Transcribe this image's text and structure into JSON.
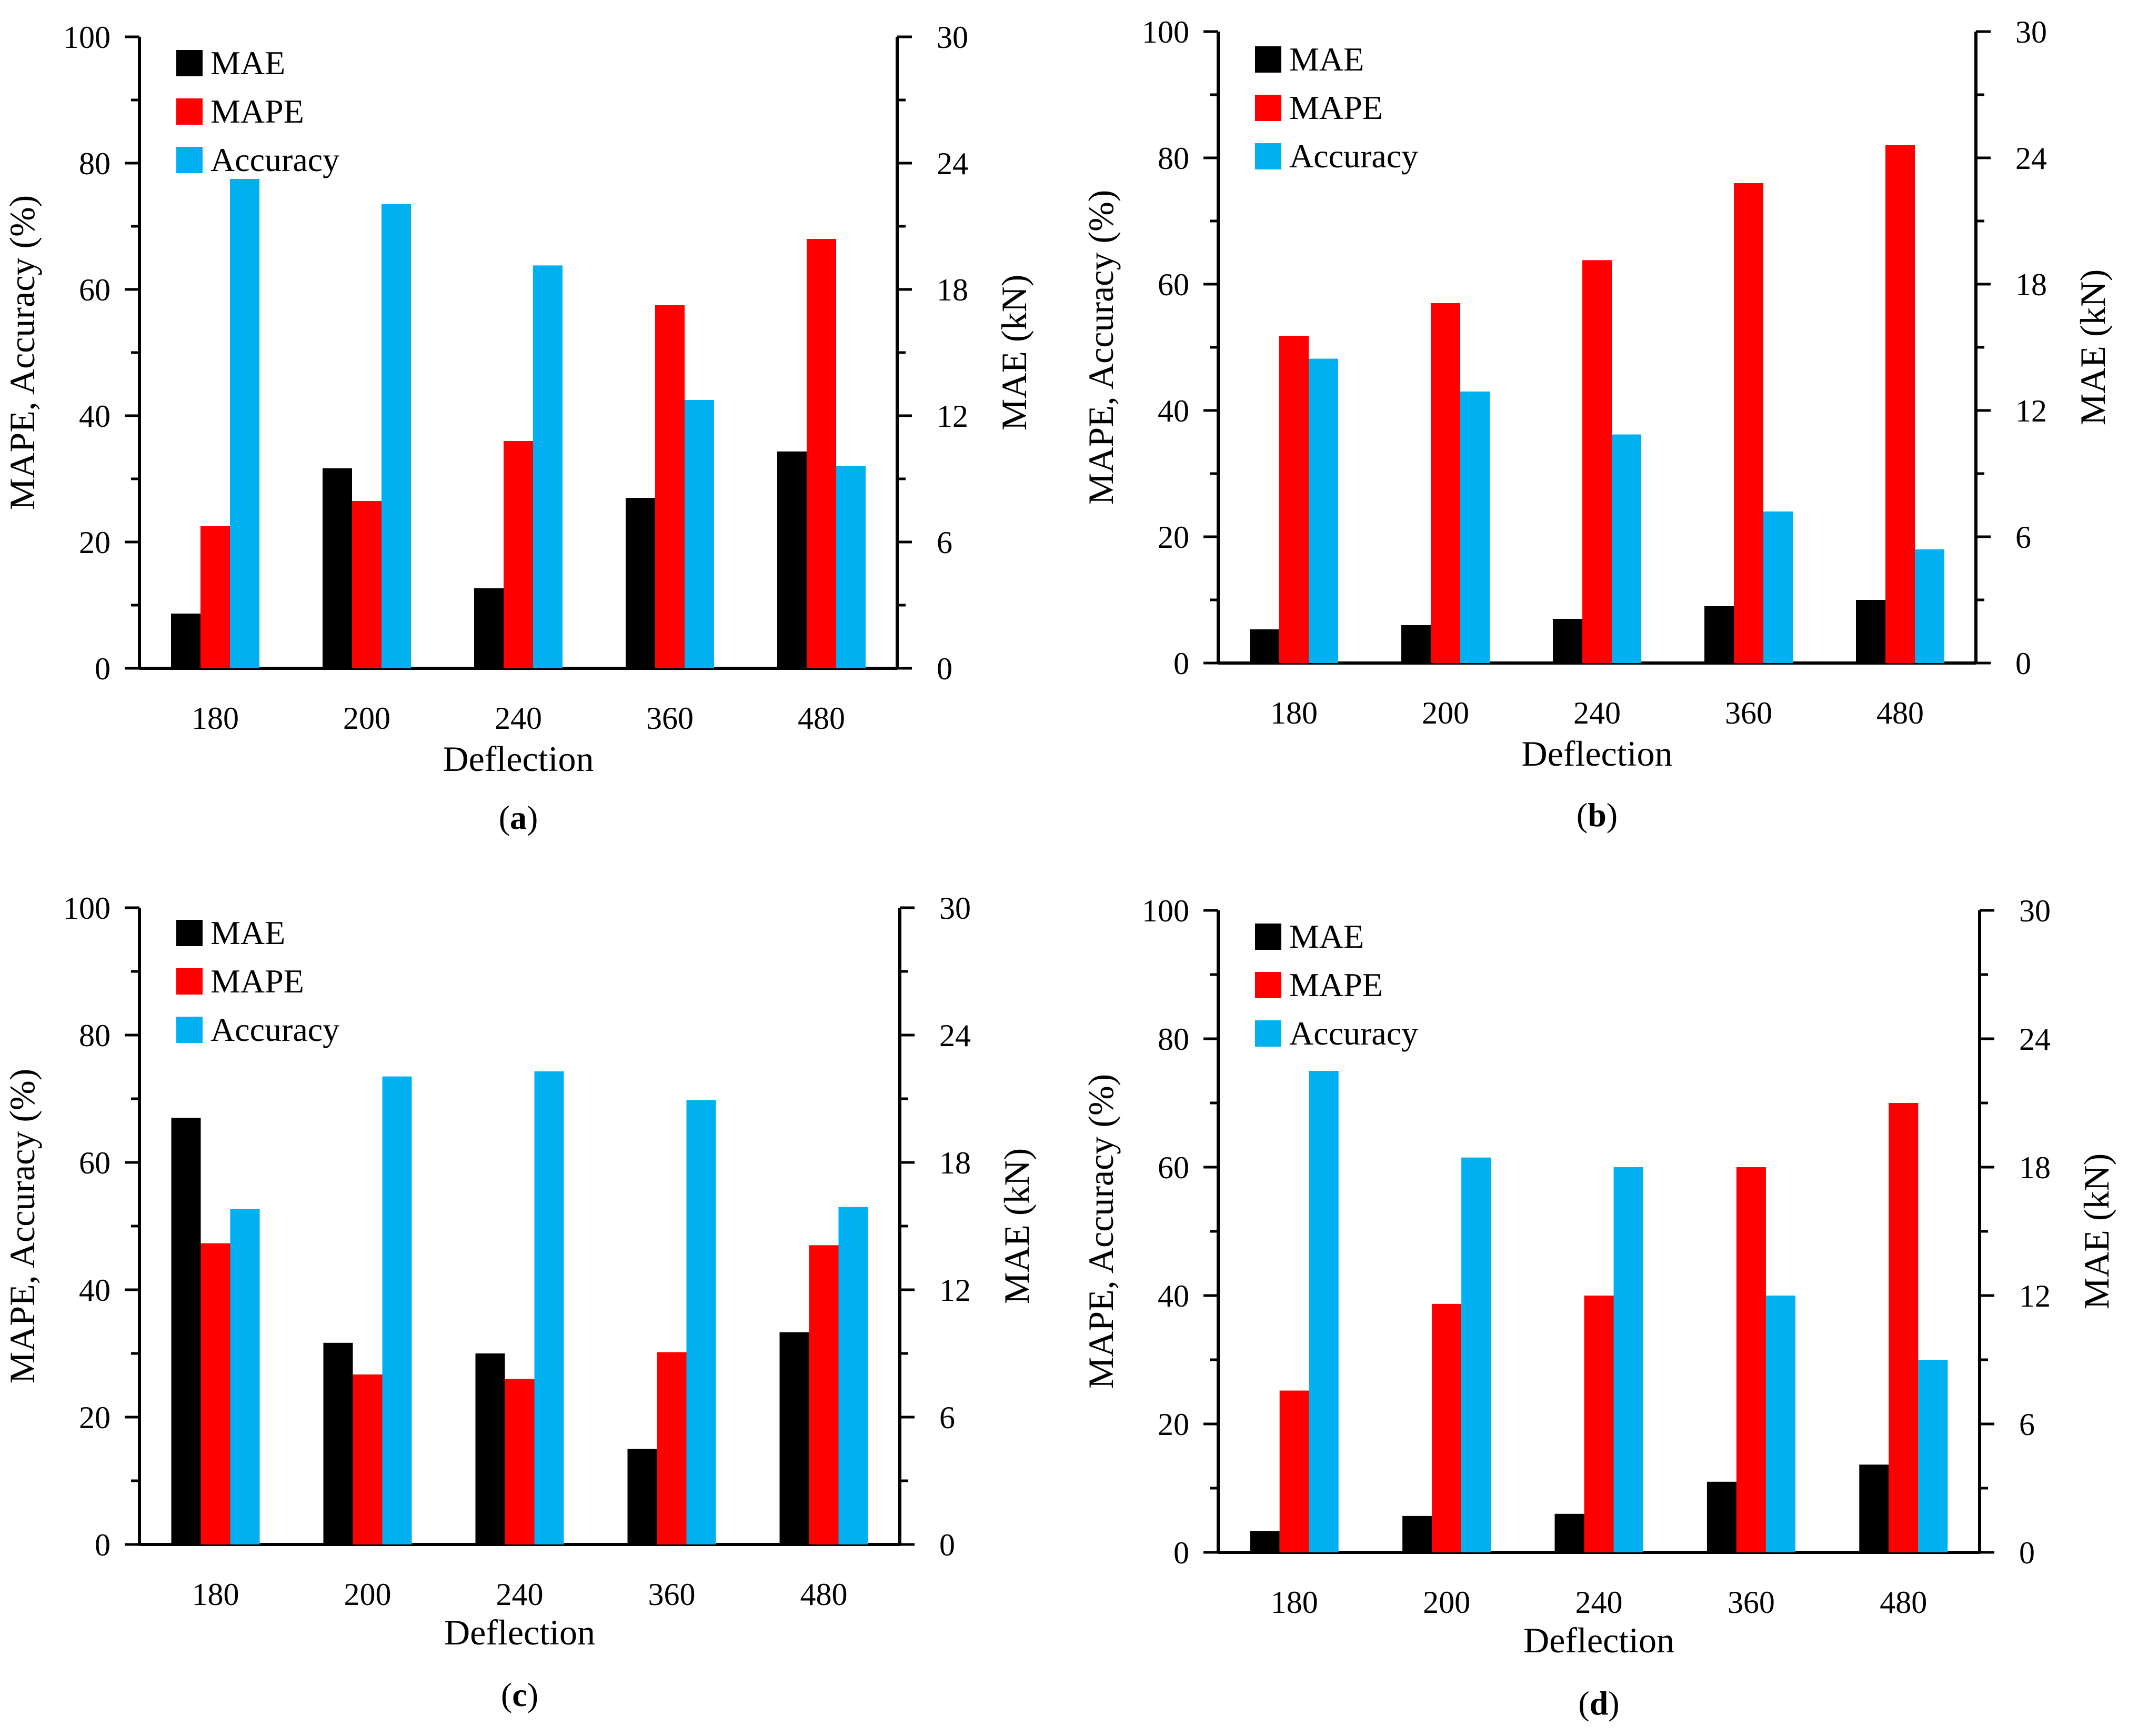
{
  "figure": {
    "panels": [
      "a",
      "b",
      "c",
      "d"
    ]
  },
  "colors": {
    "MAE": "#000000",
    "MAPE": "#ff0000",
    "Accuracy": "#00b0f0",
    "axis": "#000000"
  },
  "chart_data": [
    {
      "panel": "a",
      "panel_label": {
        "open": "(",
        "letter": "a",
        "close": ")"
      },
      "type": "bar",
      "xlabel": "Deflection",
      "ylabel_left": "MAPE, Accuracy (%)",
      "ylabel_right": "MAE (kN)",
      "categories": [
        "180",
        "200",
        "240",
        "360",
        "480"
      ],
      "ylim_left": [
        0,
        100
      ],
      "ylim_right": [
        0,
        30
      ],
      "ticks_left": [
        "0",
        "20",
        "40",
        "60",
        "80",
        "100"
      ],
      "ticks_right": [
        "0",
        "6",
        "12",
        "18",
        "24",
        "30"
      ],
      "legend": [
        "MAE",
        "MAPE",
        "Accuracy"
      ],
      "series": [
        {
          "name": "MAE",
          "axis": "right",
          "values": [
            2.6,
            9.5,
            3.8,
            8.1,
            10.3
          ]
        },
        {
          "name": "MAPE",
          "axis": "left",
          "values": [
            22.5,
            26.5,
            36.0,
            57.5,
            68.0
          ]
        },
        {
          "name": "Accuracy",
          "axis": "left",
          "values": [
            77.5,
            73.5,
            63.8,
            42.5,
            32.0
          ]
        }
      ]
    },
    {
      "panel": "b",
      "panel_label": {
        "open": "(",
        "letter": "b",
        "close": ")"
      },
      "type": "bar",
      "xlabel": "Deflection",
      "ylabel_left": "MAPE, Accuracy (%)",
      "ylabel_right": "MAE (kN)",
      "categories": [
        "180",
        "200",
        "240",
        "360",
        "480"
      ],
      "ylim_left": [
        0,
        100
      ],
      "ylim_right": [
        0,
        30
      ],
      "ticks_left": [
        "0",
        "20",
        "40",
        "60",
        "80",
        "100"
      ],
      "ticks_right": [
        "0",
        "6",
        "12",
        "18",
        "24",
        "30"
      ],
      "legend": [
        "MAE",
        "MAPE",
        "Accuracy"
      ],
      "series": [
        {
          "name": "MAE",
          "axis": "right",
          "values": [
            1.6,
            1.8,
            2.1,
            2.7,
            3.0
          ]
        },
        {
          "name": "MAPE",
          "axis": "left",
          "values": [
            51.8,
            57.0,
            63.8,
            76.0,
            82.0
          ]
        },
        {
          "name": "Accuracy",
          "axis": "left",
          "values": [
            48.2,
            43.0,
            36.2,
            24.0,
            18.0
          ]
        }
      ]
    },
    {
      "panel": "c",
      "panel_label": {
        "open": "(",
        "letter": "c",
        "close": ")"
      },
      "type": "bar",
      "xlabel": "Deflection",
      "ylabel_left": "MAPE, Accuracy (%)",
      "ylabel_right": "MAE (kN)",
      "categories": [
        "180",
        "200",
        "240",
        "360",
        "480"
      ],
      "ylim_left": [
        0,
        100
      ],
      "ylim_right": [
        0,
        30
      ],
      "ticks_left": [
        "0",
        "20",
        "40",
        "60",
        "80",
        "100"
      ],
      "ticks_right": [
        "0",
        "6",
        "12",
        "18",
        "24",
        "30"
      ],
      "legend": [
        "MAE",
        "MAPE",
        "Accuracy"
      ],
      "series": [
        {
          "name": "MAE",
          "axis": "right",
          "values": [
            20.1,
            9.5,
            9.0,
            4.5,
            10.0
          ]
        },
        {
          "name": "MAPE",
          "axis": "left",
          "values": [
            47.3,
            26.7,
            26.0,
            30.2,
            47.0
          ]
        },
        {
          "name": "Accuracy",
          "axis": "left",
          "values": [
            52.7,
            73.5,
            74.3,
            69.8,
            53.0
          ]
        }
      ]
    },
    {
      "panel": "d",
      "panel_label": {
        "open": "(",
        "letter": "d",
        "close": ")"
      },
      "type": "bar",
      "xlabel": "Deflection",
      "ylabel_left": "MAPE, Accuracy (%)",
      "ylabel_right": "MAE (kN)",
      "categories": [
        "180",
        "200",
        "240",
        "360",
        "480"
      ],
      "ylim_left": [
        0,
        100
      ],
      "ylim_right": [
        0,
        30
      ],
      "ticks_left": [
        "0",
        "20",
        "40",
        "60",
        "80",
        "100"
      ],
      "ticks_right": [
        "0",
        "6",
        "12",
        "18",
        "24",
        "30"
      ],
      "legend": [
        "MAE",
        "MAPE",
        "Accuracy"
      ],
      "series": [
        {
          "name": "MAE",
          "axis": "right",
          "values": [
            1.0,
            1.7,
            1.8,
            3.3,
            4.1
          ]
        },
        {
          "name": "MAPE",
          "axis": "left",
          "values": [
            25.2,
            38.7,
            40.0,
            60.0,
            70.0
          ]
        },
        {
          "name": "Accuracy",
          "axis": "left",
          "values": [
            75.0,
            61.5,
            60.0,
            40.0,
            30.0
          ]
        }
      ]
    }
  ]
}
